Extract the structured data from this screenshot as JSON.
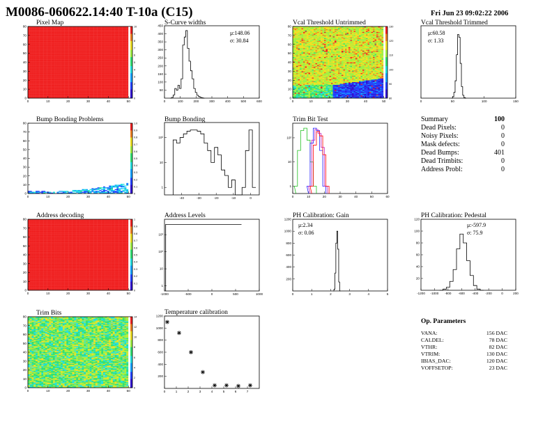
{
  "header": {
    "title": "M0086-060622.14:40 T-10a (C15)",
    "date": "Fri Jun 23 09:02:22 2006"
  },
  "panels": {
    "pixel_map": {
      "title": "Pixel Map"
    },
    "scurve": {
      "title": "S-Curve widths",
      "mu": "μ:148.06",
      "sigma": "σ: 30.84"
    },
    "vcal_untrim": {
      "title": "Vcal Threshold Untrimmed"
    },
    "vcal_trim": {
      "title": "Vcal Threshold Trimmed",
      "mu": "μ:60.58",
      "sigma": "σ: 1.33"
    },
    "bump_problems": {
      "title": "Bump Bonding Problems"
    },
    "bump_bonding": {
      "title": "Bump Bonding"
    },
    "trim_bit_test": {
      "title": "Trim Bit Test"
    },
    "address_decoding": {
      "title": "Address decoding"
    },
    "address_levels": {
      "title": "Address Levels"
    },
    "ph_gain": {
      "title": "PH Calibration: Gain",
      "mu": "μ:2.34",
      "sigma": "σ: 0.06"
    },
    "ph_pedestal": {
      "title": "PH Calibration: Pedestal",
      "mu": "μ:-597.9",
      "sigma": "σ: 75.9"
    },
    "trim_bits": {
      "title": "Trim Bits"
    },
    "temp_cal": {
      "title": "Temperature calibration"
    }
  },
  "summary": {
    "label": "Summary",
    "total": "100",
    "rows": [
      {
        "k": "Dead Pixels:",
        "v": "0"
      },
      {
        "k": "Noisy Pixels:",
        "v": "0"
      },
      {
        "k": "Mask defects:",
        "v": "0"
      },
      {
        "k": "Dead Bumps:",
        "v": "401"
      },
      {
        "k": "Dead Trimbits:",
        "v": "0"
      },
      {
        "k": "Address Probl:",
        "v": "0"
      }
    ]
  },
  "op_params": {
    "title": "Op. Parameters",
    "rows": [
      {
        "k": "VANA:",
        "v": "156 DAC"
      },
      {
        "k": "CALDEL:",
        "v": "78 DAC"
      },
      {
        "k": "VTHR:",
        "v": "82 DAC"
      },
      {
        "k": "VTRIM:",
        "v": "130 DAC"
      },
      {
        "k": "IBIAS_DAC:",
        "v": "120 DAC"
      },
      {
        "k": "VOFFSETOP:",
        "v": "23 DAC"
      }
    ]
  },
  "colors": {
    "heat_full": "#f02020",
    "palette": [
      "#3010d0",
      "#2040ff",
      "#10a0ff",
      "#20e0e0",
      "#30e070",
      "#a0f040",
      "#f0e020",
      "#f08020",
      "#f02020"
    ],
    "green": "#20c020",
    "blue": "#2020ff",
    "magenta": "#c020c0",
    "red": "#ff0000"
  },
  "chart_data": [
    {
      "id": "pixel_map",
      "type": "heatmap",
      "title": "Pixel Map",
      "xlim": [
        0,
        52
      ],
      "ylim": [
        0,
        80
      ],
      "x_ticks": [
        "0",
        "10",
        "20",
        "30",
        "40",
        "50"
      ],
      "y_ticks": [
        "0",
        "10",
        "20",
        "30",
        "40",
        "50",
        "60",
        "70",
        "80"
      ],
      "z_ticks": [
        "0",
        "1",
        "2",
        "3",
        "4",
        "5",
        "6",
        "7",
        "8",
        "9",
        "10"
      ],
      "fill": "uniform maximum"
    },
    {
      "id": "scurve",
      "type": "bar",
      "title": "S-Curve widths",
      "xlim": [
        0,
        600
      ],
      "ylim": [
        0,
        450
      ],
      "x_ticks": [
        "0",
        "100",
        "200",
        "300",
        "400",
        "500",
        "600"
      ],
      "y_ticks": [
        "50",
        "100",
        "150",
        "200",
        "250",
        "300",
        "350",
        "400",
        "450"
      ],
      "x": [
        40,
        50,
        60,
        70,
        80,
        90,
        100,
        110,
        120,
        130,
        140,
        150,
        160,
        170,
        180,
        190,
        200,
        210,
        220,
        230,
        240,
        250
      ],
      "values": [
        0,
        5,
        20,
        60,
        50,
        80,
        60,
        120,
        330,
        380,
        420,
        310,
        230,
        170,
        120,
        60,
        35,
        18,
        10,
        5,
        2,
        0
      ]
    },
    {
      "id": "vcal_untrim",
      "type": "heatmap",
      "title": "Vcal Threshold Untrimmed",
      "xlim": [
        0,
        52
      ],
      "ylim": [
        0,
        80
      ],
      "x_ticks": [
        "0",
        "10",
        "20",
        "30",
        "40",
        "50"
      ],
      "y_ticks": [
        "0",
        "10",
        "20",
        "30",
        "40",
        "50",
        "60",
        "70",
        "80"
      ],
      "z_ticks": [
        "80",
        "90",
        "100",
        "110",
        "120",
        "130"
      ]
    },
    {
      "id": "vcal_trim",
      "type": "bar",
      "title": "Vcal Threshold Trimmed",
      "xlim": [
        0,
        150
      ],
      "ylim": [
        0,
        250
      ],
      "x_ticks": [
        "0",
        "50",
        "100",
        "150"
      ],
      "x": [
        49,
        51,
        53,
        55,
        57,
        59,
        61,
        63,
        65,
        67,
        69,
        71
      ],
      "values": [
        0,
        5,
        20,
        60,
        150,
        220,
        210,
        120,
        40,
        10,
        2,
        0
      ]
    },
    {
      "id": "bump_problems",
      "type": "heatmap",
      "title": "Bump Bonding Problems",
      "xlim": [
        0,
        52
      ],
      "ylim": [
        0,
        80
      ],
      "x_ticks": [
        "0",
        "10",
        "20",
        "30",
        "40",
        "50"
      ],
      "y_ticks": [
        "0",
        "10",
        "20",
        "30",
        "40",
        "50",
        "60",
        "70",
        "80"
      ],
      "z_ticks": [
        "0",
        "0.1",
        "0.2",
        "0.3",
        "0.4",
        "0.5",
        "0.6",
        "0.7",
        "0.8",
        "0.9",
        "1.0"
      ]
    },
    {
      "id": "bump_bonding",
      "type": "bar",
      "title": "Bump Bonding",
      "log_y": true,
      "xlim": [
        -50,
        5
      ],
      "ylim": [
        0.5,
        400
      ],
      "x_ticks": [
        "-40",
        "-30",
        "-20",
        "-10",
        "0"
      ],
      "y_ticks": [
        "1",
        "10",
        "10²"
      ],
      "x": [
        -44,
        -42,
        -40,
        -38,
        -36,
        -34,
        -32,
        -30,
        -28,
        -26,
        -24,
        -22,
        -20,
        -18,
        -16,
        -14,
        -12,
        -10,
        -8,
        -6,
        -4,
        -2,
        0,
        2
      ],
      "values": [
        80,
        60,
        100,
        140,
        180,
        200,
        200,
        180,
        140,
        60,
        30,
        10,
        40,
        20,
        5,
        3,
        1,
        2,
        0,
        0,
        1,
        30,
        200,
        1
      ]
    },
    {
      "id": "trim_bit_test",
      "type": "line",
      "title": "Trim Bit Test",
      "log_y": true,
      "xlim": [
        0,
        60
      ],
      "ylim": [
        0.5,
        400
      ],
      "x_ticks": [
        "0",
        "10",
        "20",
        "30",
        "40",
        "50",
        "60"
      ],
      "y_ticks": [
        "1",
        "10",
        "10²"
      ],
      "series": [
        {
          "color": "green",
          "x": [
            2,
            4,
            6,
            8,
            10,
            12,
            14
          ],
          "values": [
            1,
            30,
            200,
            250,
            80,
            10,
            1
          ]
        },
        {
          "color": "blue",
          "x": [
            10,
            12,
            14,
            16,
            18,
            20
          ],
          "values": [
            1,
            60,
            250,
            200,
            30,
            1
          ]
        },
        {
          "color": "magenta",
          "x": [
            11,
            13,
            15,
            17,
            19,
            21
          ],
          "values": [
            1,
            80,
            220,
            150,
            40,
            1
          ]
        },
        {
          "color": "red",
          "x": [
            12,
            14,
            16,
            18,
            20,
            22
          ],
          "values": [
            1,
            50,
            180,
            120,
            20,
            1
          ]
        }
      ]
    },
    {
      "id": "address_decoding",
      "type": "heatmap",
      "title": "Address decoding",
      "xlim": [
        0,
        52
      ],
      "ylim": [
        0,
        80
      ],
      "x_ticks": [
        "0",
        "10",
        "20",
        "30",
        "40",
        "50"
      ],
      "y_ticks": [
        "0",
        "10",
        "20",
        "30",
        "40",
        "50",
        "60",
        "70",
        "80"
      ],
      "z_ticks": [
        "0",
        "0.1",
        "0.2",
        "0.3",
        "0.4",
        "0.5",
        "0.6",
        "0.7",
        "0.8",
        "0.9",
        "1"
      ],
      "fill": "uniform maximum"
    },
    {
      "id": "address_levels",
      "type": "bar",
      "title": "Address Levels",
      "log_y": true,
      "xlim": [
        -1000,
        1000
      ],
      "ylim": [
        0.5,
        8000
      ],
      "x_ticks": [
        "-1000",
        "-500",
        "0",
        "500",
        "1000"
      ],
      "y_ticks": [
        "1",
        "10",
        "10²",
        "10³"
      ],
      "x": [
        -800,
        -450,
        -300,
        -150,
        0,
        150,
        300,
        450
      ],
      "values": [
        4000,
        4000,
        4000,
        4000,
        4000,
        4000,
        4000,
        4000
      ]
    },
    {
      "id": "ph_gain",
      "type": "bar",
      "title": "PH Calibration: Gain",
      "xlim": [
        0,
        5
      ],
      "ylim": [
        0,
        1200
      ],
      "x_ticks": [
        "0",
        "1",
        "2",
        "3",
        "4",
        "5"
      ],
      "y_ticks": [
        "200",
        "400",
        "600",
        "800",
        "1000",
        "1200"
      ],
      "x": [
        2.15,
        2.2,
        2.25,
        2.3,
        2.35,
        2.4,
        2.45,
        2.5
      ],
      "values": [
        0,
        30,
        300,
        800,
        1000,
        700,
        150,
        0
      ]
    },
    {
      "id": "ph_pedestal",
      "type": "bar",
      "title": "PH Calibration: Pedestal",
      "xlim": [
        -1200,
        200
      ],
      "ylim": [
        0,
        120
      ],
      "x_ticks": [
        "-1200",
        "-1000",
        "-800",
        "-600",
        "-400",
        "-200",
        "0",
        "200"
      ],
      "y_ticks": [
        "20",
        "40",
        "60",
        "80",
        "100",
        "120"
      ],
      "x": [
        -900,
        -850,
        -800,
        -750,
        -700,
        -650,
        -600,
        -550,
        -500,
        -450,
        -400,
        -350,
        -300
      ],
      "values": [
        0,
        2,
        5,
        15,
        35,
        70,
        95,
        80,
        50,
        25,
        8,
        2,
        0
      ]
    },
    {
      "id": "trim_bits",
      "type": "heatmap",
      "title": "Trim Bits",
      "xlim": [
        0,
        52
      ],
      "ylim": [
        0,
        80
      ],
      "x_ticks": [
        "0",
        "10",
        "20",
        "30",
        "40",
        "50"
      ],
      "y_ticks": [
        "0",
        "10",
        "20",
        "30",
        "40",
        "50",
        "60",
        "70",
        "80"
      ],
      "z_ticks": [
        "0",
        "2",
        "4",
        "6",
        "8",
        "10",
        "12",
        "14"
      ]
    },
    {
      "id": "temp_cal",
      "type": "scatter",
      "title": "Temperature calibration",
      "xlim": [
        0,
        8
      ],
      "ylim": [
        0,
        1200
      ],
      "x_ticks": [
        "0",
        "1",
        "2",
        "3",
        "4",
        "5",
        "6",
        "7"
      ],
      "y_ticks": [
        "200",
        "400",
        "600",
        "800",
        "1000",
        "1200"
      ],
      "x": [
        0,
        1,
        2,
        3,
        4,
        5,
        6,
        7
      ],
      "values": [
        1100,
        920,
        600,
        270,
        50,
        50,
        40,
        50
      ]
    }
  ]
}
